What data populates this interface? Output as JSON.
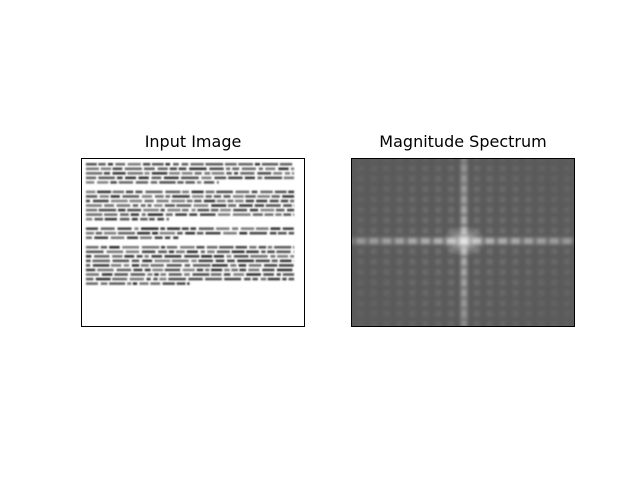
{
  "panels": {
    "left": {
      "title": "Input Image"
    },
    "right": {
      "title": "Magnitude Spectrum"
    }
  },
  "colors": {
    "background": "#ffffff",
    "frame": "#000000",
    "text_blur": "#1a1a1a",
    "spectrum_base": "#5a5a5a",
    "spectrum_bright": "#d8d8d8"
  }
}
